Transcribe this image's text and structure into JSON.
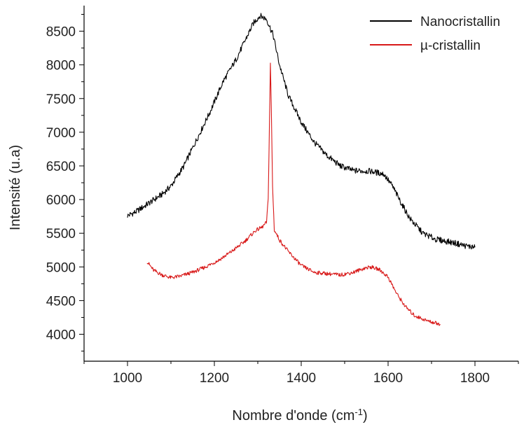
{
  "chart_data": {
    "type": "line",
    "xlabel": "Nombre d'onde (cm",
    "xlabel_sup": "-1",
    "xlabel_close": ")",
    "ylabel": "Intensité (u.a)",
    "xlim": [
      900,
      1900
    ],
    "ylim": [
      3600,
      8880
    ],
    "x_ticks": [
      1000,
      1200,
      1400,
      1600,
      1800
    ],
    "y_ticks": [
      4000,
      4500,
      5000,
      5500,
      6000,
      6500,
      7000,
      7500,
      8000,
      8500
    ],
    "grid": false,
    "legend_position": "top-right",
    "series": [
      {
        "name": "Nanocristallin",
        "color": "#000000",
        "points": [
          [
            1000,
            5760
          ],
          [
            1020,
            5820
          ],
          [
            1050,
            5950
          ],
          [
            1080,
            6080
          ],
          [
            1100,
            6200
          ],
          [
            1130,
            6500
          ],
          [
            1160,
            6900
          ],
          [
            1190,
            7300
          ],
          [
            1220,
            7750
          ],
          [
            1250,
            8080
          ],
          [
            1270,
            8350
          ],
          [
            1290,
            8620
          ],
          [
            1305,
            8730
          ],
          [
            1320,
            8680
          ],
          [
            1335,
            8450
          ],
          [
            1350,
            8000
          ],
          [
            1370,
            7550
          ],
          [
            1400,
            7150
          ],
          [
            1430,
            6850
          ],
          [
            1460,
            6650
          ],
          [
            1490,
            6500
          ],
          [
            1520,
            6430
          ],
          [
            1560,
            6420
          ],
          [
            1590,
            6380
          ],
          [
            1610,
            6200
          ],
          [
            1630,
            5950
          ],
          [
            1650,
            5720
          ],
          [
            1680,
            5500
          ],
          [
            1710,
            5410
          ],
          [
            1750,
            5360
          ],
          [
            1780,
            5310
          ],
          [
            1800,
            5290
          ]
        ]
      },
      {
        "name": "µ-cristallin",
        "color": "#d81818",
        "points": [
          [
            1045,
            5080
          ],
          [
            1060,
            4950
          ],
          [
            1080,
            4880
          ],
          [
            1100,
            4840
          ],
          [
            1120,
            4860
          ],
          [
            1150,
            4920
          ],
          [
            1180,
            5000
          ],
          [
            1210,
            5100
          ],
          [
            1240,
            5230
          ],
          [
            1270,
            5380
          ],
          [
            1295,
            5540
          ],
          [
            1310,
            5590
          ],
          [
            1320,
            5660
          ],
          [
            1324,
            6000
          ],
          [
            1327,
            7200
          ],
          [
            1329,
            8020
          ],
          [
            1331,
            7400
          ],
          [
            1334,
            6200
          ],
          [
            1338,
            5550
          ],
          [
            1350,
            5400
          ],
          [
            1370,
            5230
          ],
          [
            1400,
            5020
          ],
          [
            1430,
            4920
          ],
          [
            1460,
            4900
          ],
          [
            1490,
            4880
          ],
          [
            1520,
            4920
          ],
          [
            1545,
            4980
          ],
          [
            1560,
            5000
          ],
          [
            1580,
            4960
          ],
          [
            1600,
            4850
          ],
          [
            1620,
            4600
          ],
          [
            1640,
            4410
          ],
          [
            1660,
            4280
          ],
          [
            1690,
            4200
          ],
          [
            1720,
            4150
          ]
        ]
      }
    ]
  }
}
